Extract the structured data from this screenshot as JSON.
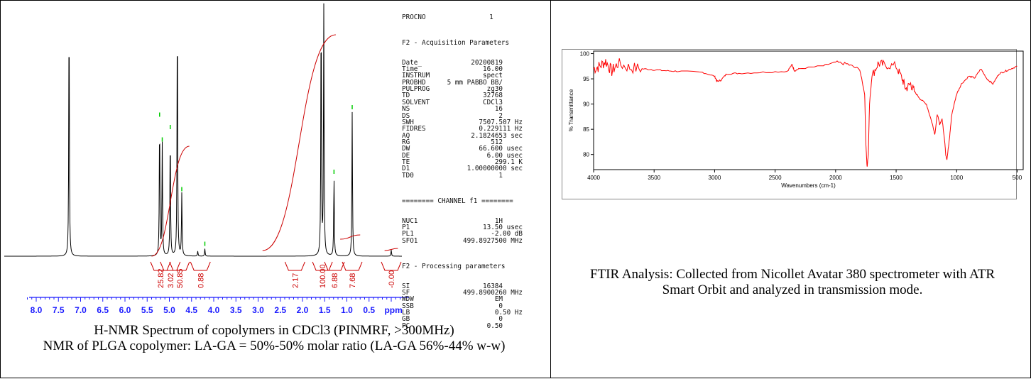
{
  "nmr": {
    "caption_line1": "H-NMR Spectrum of copolymers in CDCl3 (PINMRF, >300MHz)",
    "caption_line2": "NMR of PLGA copolymer: LA-GA = 50%-50% molar ratio (LA-GA 56%-44% w-w)",
    "params": {
      "top_line": "PROCNO                1",
      "acq_title": "F2 - Acquisition Parameters",
      "acq": [
        {
          "k": "Date_",
          "v": "20200819",
          "u": ""
        },
        {
          "k": "Time",
          "v": "16.00",
          "u": ""
        },
        {
          "k": "INSTRUM",
          "v": "spect",
          "u": ""
        },
        {
          "k": "PROBHD",
          "v": "5 mm PABBO BB/",
          "u": ""
        },
        {
          "k": "PULPROG",
          "v": "zg30",
          "u": ""
        },
        {
          "k": "TD",
          "v": "32768",
          "u": ""
        },
        {
          "k": "SOLVENT",
          "v": "CDCl3",
          "u": ""
        },
        {
          "k": "NS",
          "v": "16",
          "u": ""
        },
        {
          "k": "DS",
          "v": "2",
          "u": ""
        },
        {
          "k": "SWH",
          "v": "7507.507",
          "u": "Hz"
        },
        {
          "k": "FIDRES",
          "v": "0.229111",
          "u": "Hz"
        },
        {
          "k": "AQ",
          "v": "2.1824653",
          "u": "sec"
        },
        {
          "k": "RG",
          "v": "512",
          "u": ""
        },
        {
          "k": "DW",
          "v": "66.600",
          "u": "usec"
        },
        {
          "k": "DE",
          "v": "6.00",
          "u": "usec"
        },
        {
          "k": "TE",
          "v": "299.1",
          "u": "K"
        },
        {
          "k": "D1",
          "v": "1.00000000",
          "u": "sec"
        },
        {
          "k": "TD0",
          "v": "1",
          "u": ""
        }
      ],
      "channel_title": "======== CHANNEL f1 ========",
      "channel": [
        {
          "k": "NUC1",
          "v": "1H",
          "u": ""
        },
        {
          "k": "P1",
          "v": "13.50",
          "u": "usec"
        },
        {
          "k": "PL1",
          "v": "-2.00",
          "u": "dB"
        },
        {
          "k": "SFO1",
          "v": "499.8927500",
          "u": "MHz"
        }
      ],
      "proc_title": "F2 - Processing parameters",
      "proc": [
        {
          "k": "SI",
          "v": "16384",
          "u": ""
        },
        {
          "k": "SF",
          "v": "499.8900260",
          "u": "MHz"
        },
        {
          "k": "WDW",
          "v": "EM",
          "u": ""
        },
        {
          "k": "SSB",
          "v": "0",
          "u": ""
        },
        {
          "k": "LB",
          "v": "0.50",
          "u": "Hz"
        },
        {
          "k": "GB",
          "v": "0",
          "u": ""
        },
        {
          "k": "PC",
          "v": "0.50",
          "u": ""
        }
      ]
    }
  },
  "ftir": {
    "caption": "FTIR Analysis: Collected from Nicollet Avatar 380 spectrometer with ATR Smart Orbit and analyzed in transmission mode."
  },
  "chart_data": [
    {
      "type": "line",
      "name": "1H NMR spectrum",
      "xlabel": "ppm",
      "xlim": [
        8.4,
        -0.4
      ],
      "x_ticks": [
        "8.0",
        "7.5",
        "7.0",
        "6.5",
        "6.0",
        "5.5",
        "5.0",
        "4.5",
        "4.0",
        "3.5",
        "3.0",
        "2.5",
        "2.0",
        "1.5",
        "1.0",
        "0.5",
        "ppm"
      ],
      "x_tick_values": [
        8.0,
        7.5,
        7.0,
        6.5,
        6.0,
        5.5,
        5.0,
        4.5,
        4.0,
        3.5,
        3.0,
        2.5,
        2.0,
        1.5,
        1.0,
        0.5
      ],
      "peaks": [
        {
          "ppm": 7.26,
          "height": 1.0
        },
        {
          "ppm": 5.22,
          "height": 0.55
        },
        {
          "ppm": 5.16,
          "height": 0.45
        },
        {
          "ppm": 4.98,
          "height": 0.5
        },
        {
          "ppm": 4.82,
          "height": 1.0
        },
        {
          "ppm": 4.72,
          "height": 0.25
        },
        {
          "ppm": 4.36,
          "height": 0.02
        },
        {
          "ppm": 4.2,
          "height": 0.03
        },
        {
          "ppm": 1.58,
          "height": 1.0
        },
        {
          "ppm": 1.52,
          "height": 1.0
        },
        {
          "ppm": 1.29,
          "height": 0.32
        },
        {
          "ppm": 0.88,
          "height": 0.58
        },
        {
          "ppm": 0.0,
          "height": 0.025
        }
      ],
      "integrals": [
        {
          "ppm": 5.2,
          "label": "25.82"
        },
        {
          "ppm": 4.98,
          "label": "3.02"
        },
        {
          "ppm": 4.77,
          "label": "50.85"
        },
        {
          "ppm": 4.3,
          "label": "0.88"
        },
        {
          "ppm": 2.17,
          "label": "2.17"
        },
        {
          "ppm": 1.55,
          "label": "100.00"
        },
        {
          "ppm": 1.28,
          "label": "6.88"
        },
        {
          "ppm": 0.88,
          "label": "7.68"
        },
        {
          "ppm": 0.0,
          "label": "-0.00"
        }
      ],
      "colors": {
        "spectrum": "#000000",
        "integral": "#cc0000",
        "axis": "#1a1aff",
        "peak_marker": "#00cc00"
      }
    },
    {
      "type": "line",
      "name": "FTIR spectrum",
      "xlabel": "Wavenumbers (cm-1)",
      "ylabel": "% Transmittance",
      "xlim": [
        4000,
        450
      ],
      "ylim": [
        77,
        100.5
      ],
      "x_ticks": [
        4000,
        3500,
        3000,
        2500,
        2000,
        1500,
        1000,
        500
      ],
      "y_ticks": [
        80,
        85,
        90,
        95,
        100
      ],
      "x": [
        4000,
        3950,
        3900,
        3850,
        3800,
        3700,
        3600,
        3500,
        3400,
        3300,
        3100,
        3000,
        2980,
        2950,
        2900,
        2800,
        2600,
        2400,
        2360,
        2340,
        2300,
        2100,
        2000,
        1900,
        1800,
        1760,
        1750,
        1740,
        1730,
        1720,
        1700,
        1650,
        1600,
        1500,
        1450,
        1420,
        1380,
        1350,
        1300,
        1250,
        1200,
        1180,
        1160,
        1140,
        1120,
        1100,
        1090,
        1080,
        1060,
        1040,
        1000,
        960,
        900,
        850,
        800,
        750,
        700,
        650,
        600,
        550,
        500
      ],
      "y": [
        97.0,
        97.5,
        98.5,
        96.5,
        98.0,
        97.2,
        97.0,
        96.8,
        96.6,
        96.5,
        96.3,
        95.5,
        94.5,
        94.7,
        96.0,
        96.1,
        96.3,
        96.5,
        97.8,
        96.6,
        97.0,
        97.6,
        98.3,
        97.9,
        96.8,
        92.0,
        82.0,
        77.5,
        80.0,
        90.0,
        95.5,
        98.0,
        97.8,
        97.5,
        95.0,
        93.0,
        94.0,
        92.5,
        91.0,
        90.0,
        86.0,
        84.0,
        88.0,
        86.0,
        87.0,
        83.0,
        80.0,
        79.0,
        83.0,
        88.0,
        92.0,
        94.0,
        95.5,
        95.2,
        97.0,
        95.0,
        94.0,
        96.0,
        96.5,
        97.0,
        97.5
      ],
      "colors": {
        "line": "#ff0000",
        "frame": "#000000"
      }
    }
  ]
}
